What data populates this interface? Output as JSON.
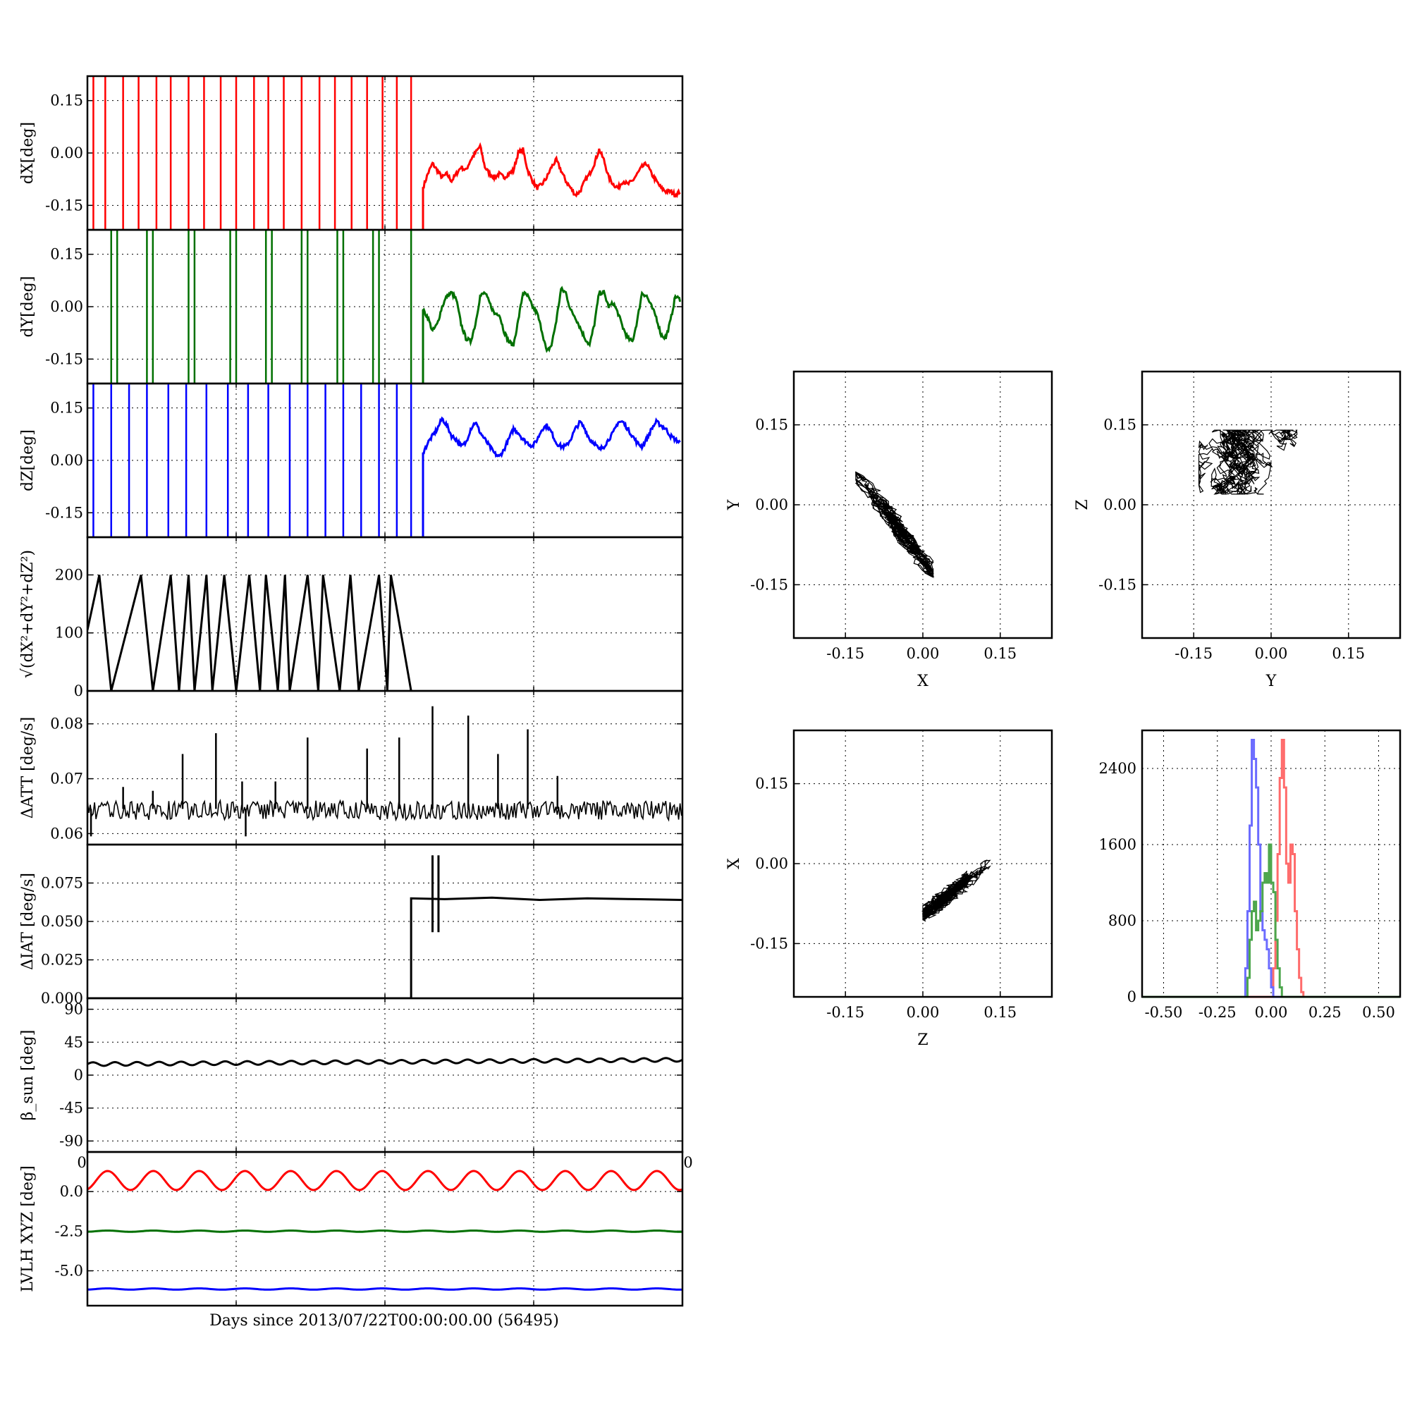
{
  "figure": {
    "xlabel": "Days since 2013/07/22T00:00:00.00 (56495)",
    "colors": {
      "x": "#ff0000",
      "y": "#007000",
      "z": "#0000ff",
      "k": "#000000"
    }
  },
  "chart_data": [
    {
      "type": "line",
      "id": "dX",
      "ylabel": "dX[deg]",
      "ylim": [
        -0.22,
        0.22
      ],
      "yticks": [
        "0.15",
        "0.00",
        "-0.15"
      ],
      "ytick_values": [
        0.15,
        0.0,
        -0.15
      ],
      "grid": true,
      "color": "#ff0000",
      "spike_days": [
        0.05,
        0.15,
        0.3,
        0.43,
        0.58,
        0.7,
        0.85,
        0.98,
        1.12,
        1.25,
        1.4,
        1.52,
        1.65,
        1.8,
        1.95,
        2.08,
        2.22,
        2.35,
        2.48,
        2.6,
        2.72
      ],
      "x": [
        2.82,
        2.86,
        2.9,
        2.94,
        2.98,
        3.02,
        3.06,
        3.1,
        3.14,
        3.18,
        3.22,
        3.26,
        3.3,
        3.34,
        3.38,
        3.42,
        3.46,
        3.5,
        3.54,
        3.58,
        3.62,
        3.66,
        3.7,
        3.74,
        3.78,
        3.82,
        3.86,
        3.9,
        3.94,
        3.98,
        4.02,
        4.06,
        4.1,
        4.14,
        4.18,
        4.22,
        4.26,
        4.3,
        4.34,
        4.38,
        4.42,
        4.46,
        4.5,
        4.54,
        4.58,
        4.62,
        4.66,
        4.7,
        4.74,
        4.78,
        4.82,
        4.86,
        4.9,
        4.94,
        4.98
      ],
      "values": [
        -0.1,
        -0.06,
        -0.03,
        -0.05,
        -0.07,
        -0.06,
        -0.08,
        -0.06,
        -0.04,
        -0.05,
        -0.02,
        0.0,
        0.02,
        -0.04,
        -0.06,
        -0.07,
        -0.06,
        -0.07,
        -0.06,
        -0.05,
        0.0,
        0.01,
        -0.05,
        -0.08,
        -0.1,
        -0.09,
        -0.07,
        -0.04,
        -0.02,
        -0.05,
        -0.08,
        -0.1,
        -0.12,
        -0.11,
        -0.08,
        -0.06,
        -0.03,
        0.01,
        -0.02,
        -0.07,
        -0.09,
        -0.1,
        -0.08,
        -0.09,
        -0.08,
        -0.06,
        -0.04,
        -0.03,
        -0.06,
        -0.08,
        -0.1,
        -0.11,
        -0.11,
        -0.12,
        -0.11
      ]
    },
    {
      "type": "line",
      "id": "dY",
      "ylabel": "dY[deg]",
      "ylim": [
        -0.22,
        0.22
      ],
      "yticks": [
        "0.15",
        "0.00",
        "-0.15"
      ],
      "ytick_values": [
        0.15,
        0.0,
        -0.15
      ],
      "grid": true,
      "color": "#007000",
      "spike_days": [
        0.2,
        0.25,
        0.5,
        0.55,
        0.85,
        0.9,
        1.2,
        1.25,
        1.5,
        1.55,
        1.8,
        1.85,
        2.1,
        2.15,
        2.4,
        2.45,
        2.72
      ],
      "x": [
        2.82,
        2.86,
        2.9,
        2.94,
        2.98,
        3.02,
        3.06,
        3.1,
        3.14,
        3.18,
        3.22,
        3.26,
        3.3,
        3.34,
        3.38,
        3.42,
        3.46,
        3.5,
        3.54,
        3.58,
        3.62,
        3.66,
        3.7,
        3.74,
        3.78,
        3.82,
        3.86,
        3.9,
        3.94,
        3.98,
        4.02,
        4.06,
        4.1,
        4.14,
        4.18,
        4.22,
        4.26,
        4.3,
        4.34,
        4.38,
        4.42,
        4.46,
        4.5,
        4.54,
        4.58,
        4.62,
        4.66,
        4.7,
        4.74,
        4.78,
        4.82,
        4.86,
        4.9,
        4.94,
        4.98
      ],
      "values": [
        -0.01,
        -0.03,
        -0.07,
        -0.05,
        0.0,
        0.03,
        0.04,
        0.02,
        -0.05,
        -0.09,
        -0.1,
        -0.05,
        0.03,
        0.04,
        0.01,
        -0.02,
        -0.02,
        -0.07,
        -0.1,
        -0.11,
        -0.04,
        0.04,
        0.03,
        0.0,
        -0.02,
        -0.07,
        -0.13,
        -0.11,
        -0.04,
        0.05,
        0.04,
        -0.01,
        -0.03,
        -0.06,
        -0.09,
        -0.11,
        -0.05,
        0.04,
        0.04,
        0.0,
        0.01,
        -0.02,
        -0.06,
        -0.09,
        -0.1,
        -0.04,
        0.04,
        0.03,
        0.0,
        -0.03,
        -0.08,
        -0.09,
        -0.04,
        0.03,
        0.02
      ]
    },
    {
      "type": "line",
      "id": "dZ",
      "ylabel": "dZ[deg]",
      "ylim": [
        -0.22,
        0.22
      ],
      "yticks": [
        "0.15",
        "0.00",
        "-0.15"
      ],
      "ytick_values": [
        0.15,
        0.0,
        -0.15
      ],
      "grid": true,
      "color": "#0000ff",
      "spike_days": [
        0.05,
        0.2,
        0.35,
        0.5,
        0.68,
        0.83,
        1.0,
        1.18,
        1.35,
        1.52,
        1.7,
        1.85,
        2.0,
        2.15,
        2.3,
        2.45,
        2.6,
        2.72
      ],
      "x": [
        2.82,
        2.86,
        2.9,
        2.94,
        2.98,
        3.02,
        3.06,
        3.1,
        3.14,
        3.18,
        3.22,
        3.26,
        3.3,
        3.34,
        3.38,
        3.42,
        3.46,
        3.5,
        3.54,
        3.58,
        3.62,
        3.66,
        3.7,
        3.74,
        3.78,
        3.82,
        3.86,
        3.9,
        3.94,
        3.98,
        4.02,
        4.06,
        4.1,
        4.14,
        4.18,
        4.22,
        4.26,
        4.3,
        4.34,
        4.38,
        4.42,
        4.46,
        4.5,
        4.54,
        4.58,
        4.62,
        4.66,
        4.7,
        4.74,
        4.78,
        4.82,
        4.86,
        4.9,
        4.94,
        4.98
      ],
      "values": [
        0.02,
        0.05,
        0.07,
        0.09,
        0.12,
        0.1,
        0.07,
        0.06,
        0.04,
        0.05,
        0.09,
        0.11,
        0.08,
        0.06,
        0.04,
        0.02,
        0.01,
        0.03,
        0.06,
        0.09,
        0.08,
        0.06,
        0.05,
        0.04,
        0.06,
        0.09,
        0.1,
        0.08,
        0.05,
        0.04,
        0.04,
        0.06,
        0.09,
        0.11,
        0.09,
        0.06,
        0.05,
        0.03,
        0.04,
        0.06,
        0.08,
        0.11,
        0.11,
        0.09,
        0.07,
        0.05,
        0.04,
        0.06,
        0.09,
        0.11,
        0.1,
        0.09,
        0.07,
        0.06,
        0.05
      ]
    },
    {
      "type": "line",
      "id": "norm",
      "ylabel": "√(dX²+dY²+dZ²)",
      "ylim": [
        0,
        265
      ],
      "yticks": [
        "200",
        "100",
        "0"
      ],
      "ytick_values": [
        200,
        100,
        0
      ],
      "grid": true,
      "color": "#000000",
      "x": [
        0.0,
        0.1,
        0.2,
        0.45,
        0.55,
        0.7,
        0.77,
        0.85,
        0.9,
        1.0,
        1.05,
        1.15,
        1.25,
        1.36,
        1.45,
        1.5,
        1.6,
        1.66,
        1.7,
        1.85,
        1.94,
        1.98,
        2.12,
        2.21,
        2.28,
        2.45,
        2.52,
        2.55,
        2.72
      ],
      "values": [
        105,
        200,
        0,
        200,
        0,
        200,
        0,
        200,
        0,
        200,
        0,
        200,
        0,
        200,
        0,
        200,
        0,
        200,
        0,
        200,
        0,
        200,
        0,
        200,
        0,
        200,
        0,
        200,
        0
      ]
    },
    {
      "type": "line",
      "id": "dATT",
      "ylabel": "ΔATT [deg/s]",
      "ylim": [
        0.058,
        0.086
      ],
      "yticks": [
        "0.08",
        "0.07",
        "0.06"
      ],
      "ytick_values": [
        0.08,
        0.07,
        0.06
      ],
      "grid": true,
      "color": "#000000",
      "baseline": 0.0645,
      "noise_band": [
        0.0625,
        0.066
      ],
      "spikes": [
        {
          "x": 0.3,
          "y": 0.0685
        },
        {
          "x": 0.55,
          "y": 0.0678
        },
        {
          "x": 0.8,
          "y": 0.0745
        },
        {
          "x": 1.08,
          "y": 0.0783
        },
        {
          "x": 1.3,
          "y": 0.0695
        },
        {
          "x": 1.58,
          "y": 0.0695
        },
        {
          "x": 1.85,
          "y": 0.0775
        },
        {
          "x": 2.35,
          "y": 0.0755
        },
        {
          "x": 2.62,
          "y": 0.0775
        },
        {
          "x": 2.9,
          "y": 0.0832
        },
        {
          "x": 3.2,
          "y": 0.0815
        },
        {
          "x": 3.45,
          "y": 0.0745
        },
        {
          "x": 3.7,
          "y": 0.079
        },
        {
          "x": 3.95,
          "y": 0.0705
        }
      ],
      "dips": [
        {
          "x": 0.03,
          "y": 0.0595
        },
        {
          "x": 1.33,
          "y": 0.0595
        }
      ]
    },
    {
      "type": "line",
      "id": "dIAT",
      "ylabel": "ΔIAT [deg/s]",
      "ylim": [
        0,
        0.1
      ],
      "yticks": [
        "0.075",
        "0.050",
        "0.025",
        "0.000"
      ],
      "ytick_values": [
        0.075,
        0.05,
        0.025,
        0.0
      ],
      "grid": true,
      "color": "#000000",
      "x": [
        0.0,
        2.72,
        2.72,
        3.0,
        3.4,
        3.8,
        4.2,
        4.6,
        5.0
      ],
      "values": [
        0.0,
        0.0,
        0.065,
        0.0645,
        0.0655,
        0.064,
        0.065,
        0.0645,
        0.064
      ],
      "glitch": {
        "x": [
          2.9,
          2.95
        ],
        "range": [
          0.043,
          0.093
        ]
      }
    },
    {
      "type": "line",
      "id": "beta",
      "ylabel": "β_sun [deg]",
      "ylim": [
        -105,
        105
      ],
      "yticks": [
        "90",
        "45",
        "0",
        "-45",
        "-90"
      ],
      "ytick_values": [
        90,
        45,
        0,
        -45,
        -90
      ],
      "grid": true,
      "color": "#000000",
      "baseline_start": 15,
      "baseline_end": 21,
      "ripple": 2.5,
      "cycles": 27,
      "x_axis_end_labels": [
        "0",
        "0"
      ]
    },
    {
      "type": "line",
      "id": "lvlh",
      "ylabel": "LVLH XYZ [deg]",
      "ylim": [
        -7.2,
        2.5
      ],
      "yticks": [
        "0.0",
        "-2.5",
        "-5.0"
      ],
      "ytick_values": [
        0.0,
        -2.5,
        -5.0
      ],
      "grid": true,
      "series": [
        {
          "color": "#ff0000",
          "mean": 0.7,
          "amp": 0.6,
          "cycles": 13
        },
        {
          "color": "#007000",
          "mean": -2.5,
          "amp": 0.04,
          "cycles": 13
        },
        {
          "color": "#0000ff",
          "mean": -6.15,
          "amp": 0.04,
          "cycles": 13
        }
      ]
    },
    {
      "type": "scatter",
      "id": "XY",
      "xlabel": "X",
      "ylabel": "Y",
      "xlim": [
        -0.25,
        0.25
      ],
      "ylim": [
        -0.25,
        0.25
      ],
      "xticks": [
        "-0.15",
        "0.00",
        "0.15"
      ],
      "yticks": [
        "0.15",
        "0.00",
        "-0.15"
      ],
      "tick_values": [
        -0.15,
        0.0,
        0.15
      ],
      "grid": true,
      "color": "#000000",
      "cluster": {
        "center": [
          -0.05,
          -0.04
        ],
        "extent": [
          -0.13,
          0.02,
          -0.14,
          0.06
        ]
      }
    },
    {
      "type": "scatter",
      "id": "YZ",
      "xlabel": "Y",
      "ylabel": "Z",
      "xlim": [
        -0.25,
        0.25
      ],
      "ylim": [
        -0.25,
        0.25
      ],
      "xticks": [
        "-0.15",
        "0.00",
        "0.15"
      ],
      "yticks": [
        "0.15",
        "0.00",
        "-0.15"
      ],
      "tick_values": [
        -0.15,
        0.0,
        0.15
      ],
      "grid": true,
      "color": "#000000",
      "cluster": {
        "center": [
          -0.02,
          0.07
        ],
        "extent": [
          -0.14,
          0.05,
          0.02,
          0.14
        ]
      }
    },
    {
      "type": "scatter",
      "id": "ZX",
      "xlabel": "Z",
      "ylabel": "X",
      "xlim": [
        -0.25,
        0.25
      ],
      "ylim": [
        -0.25,
        0.25
      ],
      "xticks": [
        "-0.15",
        "0.00",
        "0.15"
      ],
      "yticks": [
        "0.15",
        "0.00",
        "-0.15"
      ],
      "tick_values": [
        -0.15,
        0.0,
        0.15
      ],
      "grid": true,
      "color": "#000000",
      "cluster": {
        "center": [
          0.06,
          -0.05
        ],
        "extent": [
          0.0,
          0.13,
          -0.13,
          0.01
        ]
      }
    },
    {
      "type": "bar",
      "id": "hist",
      "xlim": [
        -0.6,
        0.6
      ],
      "ylim": [
        0,
        2800
      ],
      "xticks": [
        "-0.50",
        "-0.25",
        "0.00",
        "0.25",
        "0.50"
      ],
      "xtick_values": [
        -0.5,
        -0.25,
        0.0,
        0.25,
        0.5
      ],
      "yticks": [
        "2400",
        "1600",
        "800",
        "0"
      ],
      "ytick_values": [
        2400,
        1600,
        800,
        0
      ],
      "grid": true,
      "series": [
        {
          "color": "#ff6b6b",
          "x": [
            -0.6,
            0.0,
            0.01,
            0.02,
            0.03,
            0.04,
            0.05,
            0.06,
            0.07,
            0.08,
            0.09,
            0.1,
            0.11,
            0.12,
            0.13,
            0.14,
            0.15,
            0.6
          ],
          "values": [
            0,
            0,
            300,
            800,
            1500,
            2300,
            2700,
            2200,
            1400,
            1200,
            1600,
            1500,
            900,
            500,
            200,
            50,
            0,
            0
          ]
        },
        {
          "color": "#6b6bff",
          "x": [
            -0.6,
            -0.13,
            -0.12,
            -0.11,
            -0.1,
            -0.09,
            -0.08,
            -0.07,
            -0.06,
            -0.05,
            -0.04,
            -0.03,
            -0.02,
            -0.01,
            0.0,
            0.01,
            0.6
          ],
          "values": [
            0,
            0,
            300,
            900,
            1800,
            2700,
            2500,
            2200,
            1600,
            900,
            700,
            600,
            500,
            300,
            100,
            0,
            0
          ]
        },
        {
          "color": "#4ca64c",
          "x": [
            -0.6,
            -0.12,
            -0.11,
            -0.1,
            -0.09,
            -0.08,
            -0.07,
            -0.06,
            -0.05,
            -0.04,
            -0.03,
            -0.02,
            -0.01,
            0.0,
            0.01,
            0.02,
            0.03,
            0.04,
            0.05,
            0.6
          ],
          "values": [
            0,
            0,
            200,
            600,
            900,
            1000,
            700,
            800,
            900,
            1200,
            1300,
            1200,
            1600,
            1200,
            1100,
            600,
            300,
            100,
            0,
            0
          ]
        }
      ]
    }
  ]
}
